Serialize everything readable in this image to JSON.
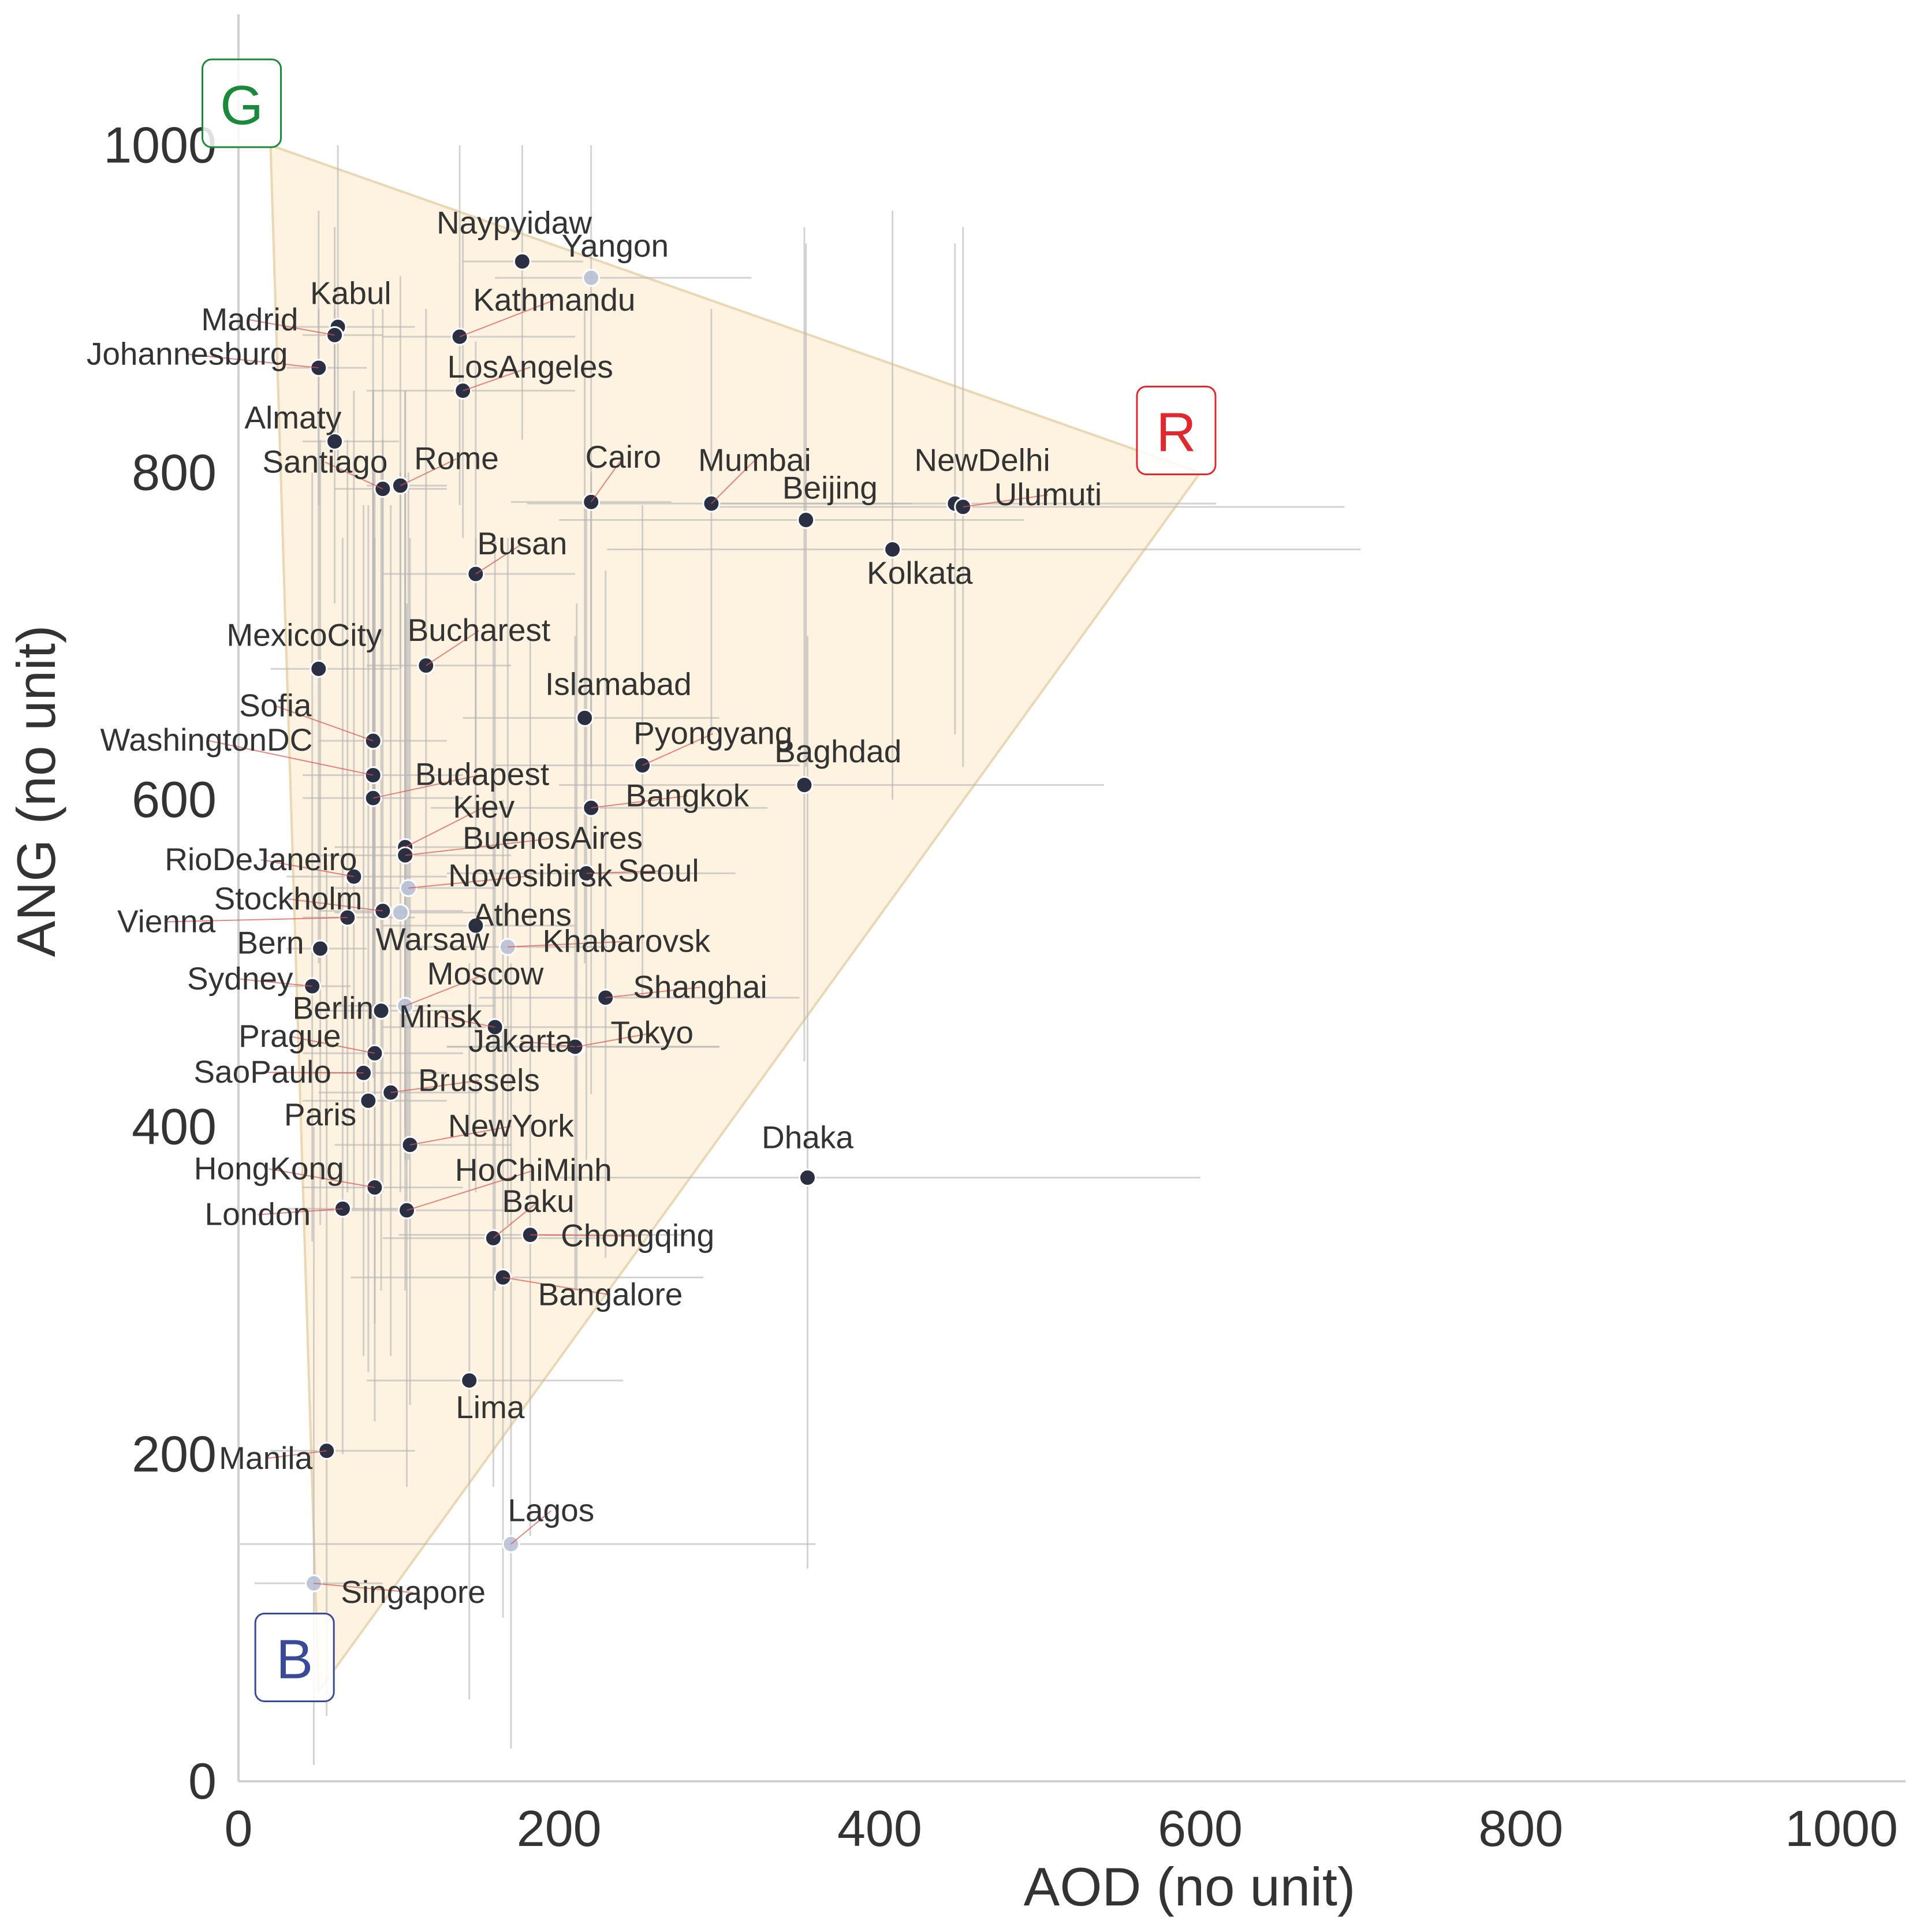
{
  "chart_data": {
    "type": "scatter",
    "title": "",
    "xlabel": "AOD (no unit)",
    "ylabel": "ANG (no unit)",
    "xlim": [
      0,
      1040
    ],
    "ylim": [
      0,
      1080
    ],
    "xticks": [
      0,
      200,
      400,
      600,
      800,
      1000
    ],
    "yticks": [
      0,
      200,
      400,
      600,
      800,
      1000
    ],
    "grid": false,
    "colors": {
      "triangle_fill": "#fdf3e0",
      "triangle_stroke": "#ead7b4",
      "point": "#2b2f42",
      "point_faint": "#b8c2d6",
      "errorbar": "#b5b5b5",
      "leader": "#e05050",
      "G": "#1a8a3a",
      "R": "#e0282e",
      "B": "#3a4a9a"
    },
    "triangle": {
      "vertices": [
        {
          "name": "G",
          "x": 20,
          "y": 1000
        },
        {
          "name": "R",
          "x": 600,
          "y": 800
        },
        {
          "name": "B",
          "x": 50,
          "y": 55
        }
      ]
    },
    "corner_labels": [
      {
        "text": "G",
        "x": 2,
        "y": 1025
      },
      {
        "text": "R",
        "x": 585,
        "y": 825
      },
      {
        "text": "B",
        "x": 35,
        "y": 75
      }
    ],
    "points": [
      {
        "name": "Naypyidaw",
        "x": 177,
        "y": 929,
        "xerr": [
          140,
          215
        ],
        "yerr": [
          820,
          1000
        ]
      },
      {
        "name": "Yangon",
        "x": 220,
        "y": 919,
        "xerr": [
          160,
          320
        ],
        "yerr": [
          1000,
          1000
        ],
        "faint": true
      },
      {
        "name": "Kabul",
        "x": 62,
        "y": 889,
        "xerr": [
          30,
          110
        ],
        "yerr": [
          800,
          1000
        ]
      },
      {
        "name": "Madrid",
        "x": 60,
        "y": 884,
        "xerr": [
          40,
          90
        ],
        "yerr": [
          820,
          950
        ]
      },
      {
        "name": "Kathmandu",
        "x": 138,
        "y": 883,
        "xerr": [
          90,
          210
        ],
        "yerr": [
          780,
          1000
        ]
      },
      {
        "name": "Johannesburg",
        "x": 50,
        "y": 864,
        "xerr": [
          30,
          80
        ],
        "yerr": [
          780,
          960
        ]
      },
      {
        "name": "LosAngeles",
        "x": 140,
        "y": 850,
        "xerr": [
          80,
          210
        ],
        "yerr": [
          760,
          950
        ]
      },
      {
        "name": "Almaty",
        "x": 60,
        "y": 819,
        "xerr": [
          40,
          100
        ],
        "yerr": [
          720,
          900
        ]
      },
      {
        "name": "Santiago",
        "x": 90,
        "y": 790,
        "xerr": [
          60,
          130
        ],
        "yerr": [
          700,
          900
        ]
      },
      {
        "name": "Rome",
        "x": 101,
        "y": 792,
        "xerr": [
          80,
          130
        ],
        "yerr": [
          680,
          920
        ]
      },
      {
        "name": "Cairo",
        "x": 220,
        "y": 782,
        "xerr": [
          170,
          270
        ],
        "yerr": [
          620,
          1000
        ]
      },
      {
        "name": "Mumbai",
        "x": 295,
        "y": 781,
        "xerr": [
          180,
          420
        ],
        "yerr": [
          640,
          900
        ]
      },
      {
        "name": "Beijing",
        "x": 354,
        "y": 771,
        "xerr": [
          200,
          490
        ],
        "yerr": [
          620,
          940
        ]
      },
      {
        "name": "NewDelhi",
        "x": 447,
        "y": 781,
        "xerr": [
          300,
          610
        ],
        "yerr": [
          640,
          940
        ]
      },
      {
        "name": "Ulumuti",
        "x": 452,
        "y": 779,
        "xerr": [
          300,
          690
        ],
        "yerr": [
          620,
          950
        ]
      },
      {
        "name": "Kolkata",
        "x": 408,
        "y": 753,
        "xerr": [
          230,
          700
        ],
        "yerr": [
          600,
          960
        ]
      },
      {
        "name": "Busan",
        "x": 148,
        "y": 738,
        "xerr": [
          90,
          210
        ],
        "yerr": [
          600,
          880
        ]
      },
      {
        "name": "MexicoCity",
        "x": 50,
        "y": 680,
        "xerr": [
          20,
          100
        ],
        "yerr": [
          500,
          900
        ]
      },
      {
        "name": "Bucharest",
        "x": 117,
        "y": 682,
        "xerr": [
          80,
          170
        ],
        "yerr": [
          520,
          900
        ]
      },
      {
        "name": "Islamabad",
        "x": 216,
        "y": 650,
        "xerr": [
          140,
          300
        ],
        "yerr": [
          500,
          900
        ]
      },
      {
        "name": "Sofia",
        "x": 84,
        "y": 636,
        "xerr": [
          50,
          130
        ],
        "yerr": [
          460,
          900
        ]
      },
      {
        "name": "Pyongyang",
        "x": 252,
        "y": 621,
        "xerr": [
          160,
          350
        ],
        "yerr": [
          480,
          780
        ]
      },
      {
        "name": "WashingtonDC",
        "x": 84,
        "y": 615,
        "xerr": [
          40,
          140
        ],
        "yerr": [
          440,
          850
        ]
      },
      {
        "name": "Baghdad",
        "x": 353,
        "y": 609,
        "xerr": [
          200,
          540
        ],
        "yerr": [
          440,
          950
        ]
      },
      {
        "name": "Budapest",
        "x": 84,
        "y": 601,
        "xerr": [
          40,
          140
        ],
        "yerr": [
          430,
          850
        ]
      },
      {
        "name": "Bangkok",
        "x": 220,
        "y": 595,
        "xerr": [
          120,
          330
        ],
        "yerr": [
          420,
          800
        ]
      },
      {
        "name": "Kiev",
        "x": 104,
        "y": 571,
        "xerr": [
          60,
          160
        ],
        "yerr": [
          400,
          850
        ]
      },
      {
        "name": "BuenosAires",
        "x": 104,
        "y": 566,
        "xerr": [
          50,
          170
        ],
        "yerr": [
          380,
          850
        ]
      },
      {
        "name": "RioDeJaneiro",
        "x": 72,
        "y": 553,
        "xerr": [
          30,
          130
        ],
        "yerr": [
          350,
          850
        ]
      },
      {
        "name": "Seoul",
        "x": 217,
        "y": 555,
        "xerr": [
          130,
          310
        ],
        "yerr": [
          380,
          780
        ]
      },
      {
        "name": "Novosibirsk",
        "x": 106,
        "y": 546,
        "xerr": [
          60,
          160
        ],
        "yerr": [
          380,
          800
        ],
        "faint": true
      },
      {
        "name": "Stockholm",
        "x": 90,
        "y": 532,
        "xerr": [
          50,
          140
        ],
        "yerr": [
          360,
          820
        ]
      },
      {
        "name": "Vienna",
        "x": 68,
        "y": 528,
        "xerr": [
          40,
          110
        ],
        "yerr": [
          360,
          820
        ]
      },
      {
        "name": "Athens",
        "x": 148,
        "y": 523,
        "xerr": [
          90,
          210
        ],
        "yerr": [
          360,
          760
        ]
      },
      {
        "name": "Warsaw",
        "x": 101,
        "y": 531,
        "xerr": [
          60,
          150
        ],
        "yerr": [
          360,
          800
        ],
        "faint": true
      },
      {
        "name": "Bern",
        "x": 51,
        "y": 509,
        "xerr": [
          30,
          80
        ],
        "yerr": [
          340,
          820
        ]
      },
      {
        "name": "Khabarovsk",
        "x": 168,
        "y": 510,
        "xerr": [
          110,
          230
        ],
        "yerr": [
          340,
          760
        ],
        "faint": true
      },
      {
        "name": "Sydney",
        "x": 46,
        "y": 486,
        "xerr": [
          30,
          70
        ],
        "yerr": [
          330,
          800
        ]
      },
      {
        "name": "Shanghai",
        "x": 229,
        "y": 479,
        "xerr": [
          150,
          350
        ],
        "yerr": [
          320,
          740
        ]
      },
      {
        "name": "Moscow",
        "x": 104,
        "y": 474,
        "xerr": [
          60,
          160
        ],
        "yerr": [
          300,
          800
        ],
        "faint": true
      },
      {
        "name": "Berlin",
        "x": 89,
        "y": 471,
        "xerr": [
          50,
          140
        ],
        "yerr": [
          300,
          800
        ]
      },
      {
        "name": "Minsk",
        "x": 160,
        "y": 461,
        "xerr": [
          90,
          240
        ],
        "yerr": [
          300,
          760
        ]
      },
      {
        "name": "Tokyo",
        "x": 211,
        "y": 449,
        "xerr": [
          130,
          300
        ],
        "yerr": [
          300,
          720
        ]
      },
      {
        "name": "Prague",
        "x": 85,
        "y": 445,
        "xerr": [
          40,
          140
        ],
        "yerr": [
          280,
          800
        ]
      },
      {
        "name": "Jakarta",
        "x": 210,
        "y": 449,
        "xerr": [
          130,
          300
        ],
        "yerr": [
          300,
          700
        ]
      },
      {
        "name": "SaoPaulo",
        "x": 78,
        "y": 433,
        "xerr": [
          40,
          130
        ],
        "yerr": [
          260,
          780
        ]
      },
      {
        "name": "Brussels",
        "x": 95,
        "y": 421,
        "xerr": [
          50,
          150
        ],
        "yerr": [
          260,
          780
        ]
      },
      {
        "name": "Paris",
        "x": 81,
        "y": 416,
        "xerr": [
          40,
          130
        ],
        "yerr": [
          250,
          780
        ]
      },
      {
        "name": "NewYork",
        "x": 107,
        "y": 389,
        "xerr": [
          60,
          170
        ],
        "yerr": [
          230,
          760
        ]
      },
      {
        "name": "HongKong",
        "x": 85,
        "y": 363,
        "xerr": [
          40,
          140
        ],
        "yerr": [
          220,
          760
        ]
      },
      {
        "name": "Dhaka",
        "x": 355,
        "y": 369,
        "xerr": [
          200,
          600
        ],
        "yerr": [
          130,
          700
        ]
      },
      {
        "name": "London",
        "x": 65,
        "y": 350,
        "xerr": [
          30,
          110
        ],
        "yerr": [
          200,
          760
        ]
      },
      {
        "name": "HoChiMinh",
        "x": 105,
        "y": 349,
        "xerr": [
          50,
          170
        ],
        "yerr": [
          180,
          720
        ]
      },
      {
        "name": "Baku",
        "x": 159,
        "y": 332,
        "xerr": [
          90,
          230
        ],
        "yerr": [
          180,
          700
        ]
      },
      {
        "name": "Chongqing",
        "x": 182,
        "y": 334,
        "xerr": [
          100,
          280
        ],
        "yerr": [
          150,
          700
        ]
      },
      {
        "name": "Bangalore",
        "x": 165,
        "y": 308,
        "xerr": [
          70,
          290
        ],
        "yerr": [
          100,
          600
        ]
      },
      {
        "name": "Lima",
        "x": 144,
        "y": 245,
        "xerr": [
          80,
          240
        ],
        "yerr": [
          50,
          500
        ]
      },
      {
        "name": "Manila",
        "x": 55,
        "y": 202,
        "xerr": [
          20,
          110
        ],
        "yerr": [
          40,
          560
        ]
      },
      {
        "name": "Lagos",
        "x": 170,
        "y": 145,
        "xerr": [
          0,
          360
        ],
        "yerr": [
          20,
          500
        ],
        "faint": true
      },
      {
        "name": "Singapore",
        "x": 47,
        "y": 121,
        "xerr": [
          10,
          90
        ],
        "yerr": [
          10,
          400
        ],
        "faint": true
      }
    ],
    "labels": [
      {
        "text": "Naypyidaw",
        "lx": 172,
        "ly": 946,
        "anchor": "middle"
      },
      {
        "text": "Yangon",
        "lx": 235,
        "ly": 932,
        "anchor": "middle"
      },
      {
        "text": "Kabul",
        "lx": 70,
        "ly": 903,
        "anchor": "middle"
      },
      {
        "text": "Kathmandu",
        "lx": 197,
        "ly": 899,
        "anchor": "middle"
      },
      {
        "text": "Madrid",
        "lx": 7,
        "ly": 887,
        "anchor": "middle"
      },
      {
        "text": "Johannesburg",
        "lx": -32,
        "ly": 866,
        "anchor": "middle"
      },
      {
        "text": "LosAngeles",
        "lx": 182,
        "ly": 858,
        "anchor": "middle"
      },
      {
        "text": "Almaty",
        "lx": 34,
        "ly": 827,
        "anchor": "middle"
      },
      {
        "text": "Santiago",
        "lx": 54,
        "ly": 800,
        "anchor": "middle"
      },
      {
        "text": "Rome",
        "lx": 136,
        "ly": 802,
        "anchor": "middle"
      },
      {
        "text": "Cairo",
        "lx": 240,
        "ly": 803,
        "anchor": "middle"
      },
      {
        "text": "Mumbai",
        "lx": 322,
        "ly": 801,
        "anchor": "middle"
      },
      {
        "text": "Beijing",
        "lx": 369,
        "ly": 784,
        "anchor": "middle"
      },
      {
        "text": "NewDelhi",
        "lx": 464,
        "ly": 801,
        "anchor": "middle"
      },
      {
        "text": "Ulumuti",
        "lx": 505,
        "ly": 780,
        "anchor": "middle"
      },
      {
        "text": "Kolkata",
        "lx": 425,
        "ly": 732,
        "anchor": "middle"
      },
      {
        "text": "Busan",
        "lx": 177,
        "ly": 750,
        "anchor": "middle"
      },
      {
        "text": "MexicoCity",
        "lx": 41,
        "ly": 694,
        "anchor": "middle"
      },
      {
        "text": "Bucharest",
        "lx": 150,
        "ly": 697,
        "anchor": "middle"
      },
      {
        "text": "Islamabad",
        "lx": 237,
        "ly": 664,
        "anchor": "middle"
      },
      {
        "text": "Sofia",
        "lx": 23,
        "ly": 651,
        "anchor": "middle"
      },
      {
        "text": "Pyongyang",
        "lx": 296,
        "ly": 634,
        "anchor": "middle"
      },
      {
        "text": "WashingtonDC",
        "lx": -20,
        "ly": 630,
        "anchor": "middle"
      },
      {
        "text": "Baghdad",
        "lx": 374,
        "ly": 623,
        "anchor": "middle"
      },
      {
        "text": "Budapest",
        "lx": 152,
        "ly": 609,
        "anchor": "middle"
      },
      {
        "text": "Bangkok",
        "lx": 280,
        "ly": 596,
        "anchor": "middle"
      },
      {
        "text": "Kiev",
        "lx": 153,
        "ly": 589,
        "anchor": "middle"
      },
      {
        "text": "BuenosAires",
        "lx": 196,
        "ly": 570,
        "anchor": "middle"
      },
      {
        "text": "RioDeJaneiro",
        "lx": 14,
        "ly": 557,
        "anchor": "middle"
      },
      {
        "text": "Seoul",
        "lx": 262,
        "ly": 550,
        "anchor": "middle"
      },
      {
        "text": "Novosibirsk",
        "lx": 182,
        "ly": 547,
        "anchor": "middle"
      },
      {
        "text": "Stockholm",
        "lx": 31,
        "ly": 533,
        "anchor": "middle"
      },
      {
        "text": "Vienna",
        "lx": -45,
        "ly": 519,
        "anchor": "middle"
      },
      {
        "text": "Athens",
        "lx": 177,
        "ly": 523,
        "anchor": "middle"
      },
      {
        "text": "Warsaw",
        "lx": 121,
        "ly": 508,
        "anchor": "middle"
      },
      {
        "text": "Bern",
        "lx": 20,
        "ly": 506,
        "anchor": "middle"
      },
      {
        "text": "Khabarovsk",
        "lx": 242,
        "ly": 507,
        "anchor": "middle"
      },
      {
        "text": "Sydney",
        "lx": 1,
        "ly": 484,
        "anchor": "middle"
      },
      {
        "text": "Shanghai",
        "lx": 288,
        "ly": 479,
        "anchor": "middle"
      },
      {
        "text": "Moscow",
        "lx": 154,
        "ly": 487,
        "anchor": "middle"
      },
      {
        "text": "Berlin",
        "lx": 59,
        "ly": 466,
        "anchor": "middle"
      },
      {
        "text": "Minsk",
        "lx": 126,
        "ly": 461,
        "anchor": "middle"
      },
      {
        "text": "Tokyo",
        "lx": 258,
        "ly": 451,
        "anchor": "middle"
      },
      {
        "text": "Prague",
        "lx": 32,
        "ly": 449,
        "anchor": "middle"
      },
      {
        "text": "Jakarta",
        "lx": 176,
        "ly": 446,
        "anchor": "middle"
      },
      {
        "text": "SaoPaulo",
        "lx": 15,
        "ly": 427,
        "anchor": "middle"
      },
      {
        "text": "Brussels",
        "lx": 150,
        "ly": 422,
        "anchor": "middle"
      },
      {
        "text": "Paris",
        "lx": 51,
        "ly": 401,
        "anchor": "middle"
      },
      {
        "text": "NewYork",
        "lx": 170,
        "ly": 394,
        "anchor": "middle"
      },
      {
        "text": "HongKong",
        "lx": 19,
        "ly": 368,
        "anchor": "middle"
      },
      {
        "text": "Dhaka",
        "lx": 355,
        "ly": 387,
        "anchor": "middle"
      },
      {
        "text": "London",
        "lx": 12,
        "ly": 340,
        "anchor": "middle"
      },
      {
        "text": "HoChiMinh",
        "lx": 184,
        "ly": 367,
        "anchor": "middle"
      },
      {
        "text": "Baku",
        "lx": 187,
        "ly": 348,
        "anchor": "middle"
      },
      {
        "text": "Chongqing",
        "lx": 249,
        "ly": 327,
        "anchor": "middle"
      },
      {
        "text": "Bangalore",
        "lx": 232,
        "ly": 291,
        "anchor": "middle"
      },
      {
        "text": "Lima",
        "lx": 157,
        "ly": 222,
        "anchor": "middle"
      },
      {
        "text": "Manila",
        "lx": 17,
        "ly": 191,
        "anchor": "middle"
      },
      {
        "text": "Lagos",
        "lx": 195,
        "ly": 159,
        "anchor": "middle"
      },
      {
        "text": "Singapore",
        "lx": 109,
        "ly": 109,
        "anchor": "middle"
      }
    ]
  }
}
